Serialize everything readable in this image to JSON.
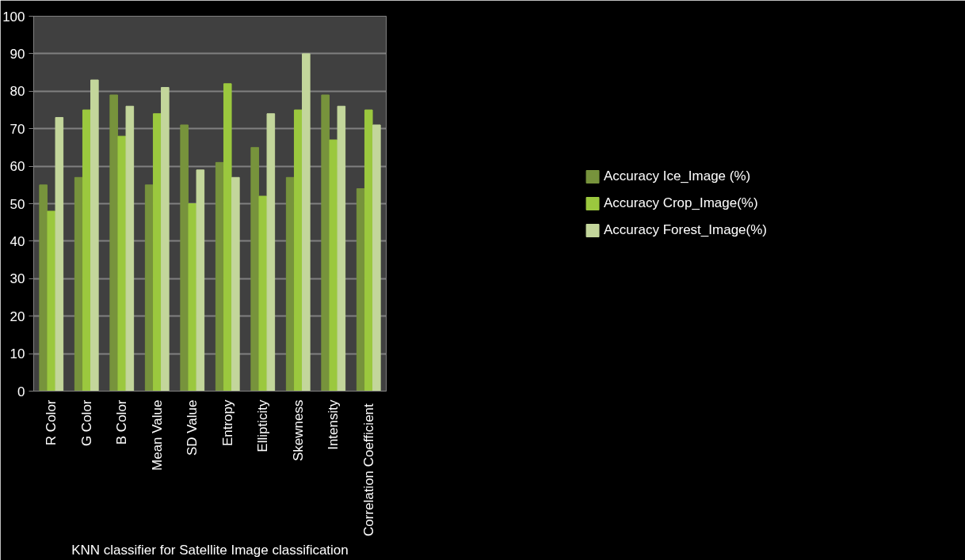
{
  "chart_data": {
    "type": "bar",
    "xlabel": "KNN classifier for Satellite Image classification",
    "categories": [
      "R Color",
      "G Color",
      "B Color",
      "Mean Value",
      "SD Value",
      "Entropy",
      "Ellipticity",
      "Skewness",
      "Intensity",
      "Correlation  Coefficient"
    ],
    "series": [
      {
        "name": "Accuracy Ice_Image (%)",
        "color": "#77933c",
        "values": [
          55,
          57,
          79,
          55,
          71,
          61,
          65,
          57,
          79,
          54
        ]
      },
      {
        "name": "Accuracy Crop_Image(%)",
        "color": "#9bc83e",
        "values": [
          48,
          75,
          68,
          74,
          50,
          82,
          52,
          75,
          67,
          75
        ]
      },
      {
        "name": "Accuracy Forest_Image(%)",
        "color": "#c3d69b",
        "values": [
          73,
          83,
          76,
          81,
          59,
          57,
          74,
          90,
          76,
          71
        ]
      }
    ],
    "ylim": [
      0,
      100
    ],
    "yticks": [
      0,
      10,
      20,
      30,
      40,
      50,
      60,
      70,
      80,
      90,
      100
    ],
    "grid": "y",
    "legend": "right"
  }
}
